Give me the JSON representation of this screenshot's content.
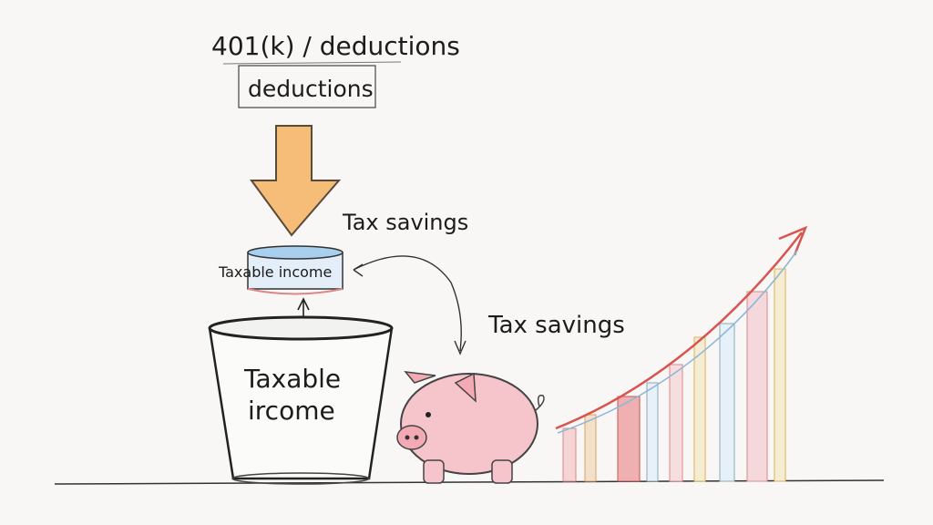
{
  "labels": {
    "top_title": "401(k) / deductions",
    "box_label": "deductions",
    "tax_savings_upper": "Tax savings",
    "tax_savings_lower": "Tax savings",
    "cylinder_label": "Taxable income",
    "bucket_line1": "Taxable",
    "bucket_line2": "ircome"
  },
  "colors": {
    "arrow_orange": "#f0a24a",
    "cylinder_blue": "#a9cfee",
    "pig_pink": "#f4b8c0",
    "growth_arrow_red": "#d9534f"
  }
}
